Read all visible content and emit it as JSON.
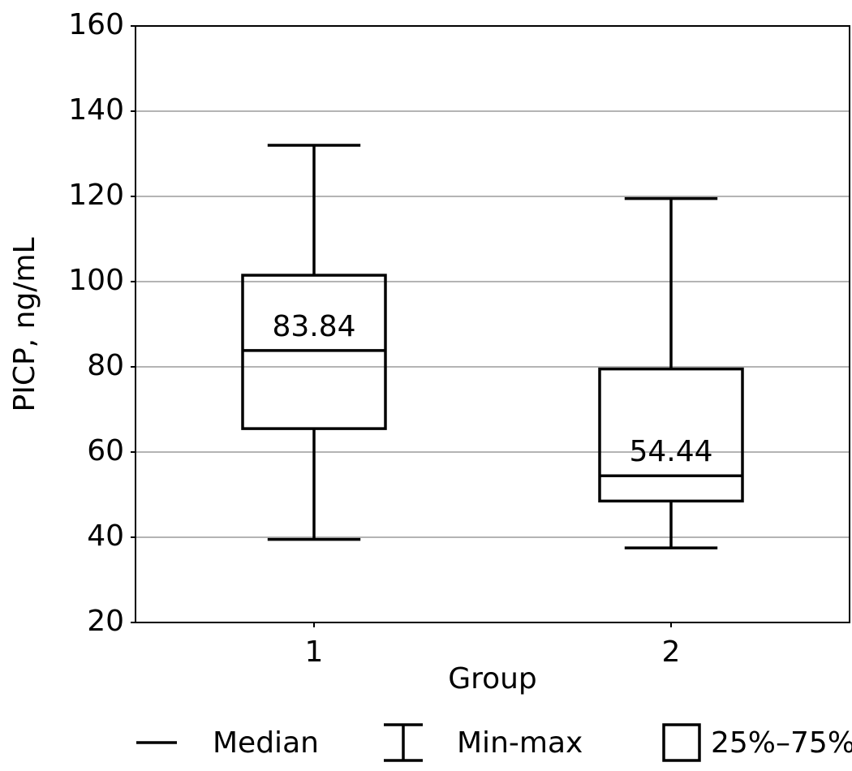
{
  "chart_data": {
    "type": "box",
    "y_label": "PICP, ng/mL",
    "x_label": "Group",
    "categories": [
      "1",
      "2"
    ],
    "boxes": [
      {
        "min": 39.5,
        "q1": 65.5,
        "median": 83.84,
        "q3": 101.5,
        "max": 132
      },
      {
        "min": 37.5,
        "q1": 48.5,
        "median": 54.44,
        "q3": 79.5,
        "max": 119.5
      }
    ],
    "color": "#000000",
    "ylim": [
      20,
      160
    ],
    "yticks": [
      20,
      40,
      60,
      80,
      100,
      120,
      140,
      160
    ],
    "grid": true,
    "legend_labels": [
      "Median",
      "Min-max",
      "25%–75%"
    ],
    "legend_position": "bottom"
  }
}
